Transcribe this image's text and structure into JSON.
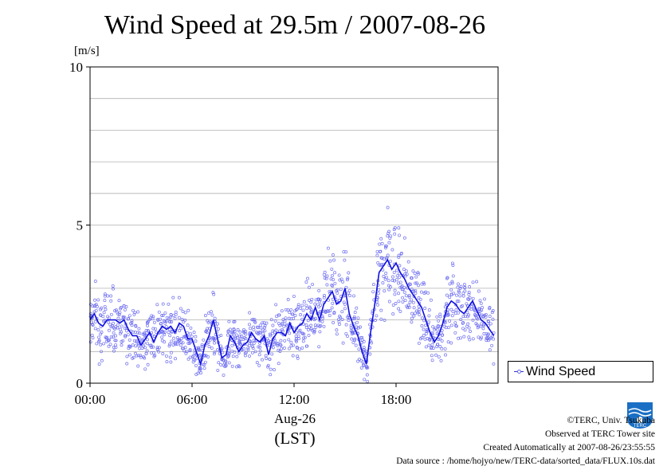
{
  "title": "Wind Speed at 29.5m / 2007-08-26",
  "unit": "[m/s]",
  "x_title_date": "Aug-26",
  "x_title_lst": "(LST)",
  "legend_label": "Wind Speed",
  "logo_text": "TERC",
  "credits": {
    "line1": "©TERC, Univ. Tsukuba",
    "line2": "Observed at TERC Tower site",
    "line3": "Created Automatically at 2007-08-26/23:55:55",
    "line4": "Data source : /home/hojyo/new/TERC-data/sorted_data/FLUX.10s.dat"
  },
  "colors": {
    "line": "#1010e0",
    "points": "#7070f0",
    "grid": "#b0b0b0"
  },
  "chart_data": {
    "type": "line",
    "title": "Wind Speed at 29.5m / 2007-08-26",
    "ylabel": "[m/s]",
    "xlabel": "Aug-26 (LST)",
    "xlim": [
      0,
      24
    ],
    "ylim": [
      0,
      10
    ],
    "x_ticks": [
      0,
      6,
      12,
      18
    ],
    "x_tick_labels": [
      "00:00",
      "06:00",
      "12:00",
      "18:00"
    ],
    "y_ticks": [
      0,
      5,
      10
    ],
    "y_tick_labels": [
      "0",
      "5",
      "10"
    ],
    "grid": "horizontal every 1 m/s",
    "legend": "right, beside plot bottom",
    "series": [
      {
        "name": "Wind Speed",
        "x": [
          0,
          0.25,
          0.5,
          0.75,
          1,
          1.25,
          1.5,
          1.75,
          2,
          2.25,
          2.5,
          2.75,
          3,
          3.25,
          3.5,
          3.75,
          4,
          4.25,
          4.5,
          4.75,
          5,
          5.25,
          5.5,
          5.75,
          6,
          6.25,
          6.5,
          6.75,
          7,
          7.25,
          7.5,
          7.75,
          8,
          8.25,
          8.5,
          8.75,
          9,
          9.25,
          9.5,
          9.75,
          10,
          10.25,
          10.5,
          10.75,
          11,
          11.25,
          11.5,
          11.75,
          12,
          12.25,
          12.5,
          12.75,
          13,
          13.25,
          13.5,
          13.75,
          14,
          14.25,
          14.5,
          14.75,
          15,
          15.25,
          15.5,
          15.75,
          16,
          16.25,
          16.5,
          16.75,
          17,
          17.25,
          17.5,
          17.75,
          18,
          18.25,
          18.5,
          18.75,
          19,
          19.25,
          19.5,
          19.75,
          20,
          20.25,
          20.5,
          20.75,
          21,
          21.25,
          21.5,
          21.75,
          22,
          22.25,
          22.5,
          22.75,
          23,
          23.25,
          23.5,
          23.75
        ],
        "y": [
          2.0,
          2.2,
          1.9,
          1.8,
          2.0,
          2.0,
          2.0,
          1.9,
          2.0,
          1.7,
          1.5,
          1.5,
          1.2,
          1.4,
          1.6,
          1.3,
          1.6,
          1.8,
          1.7,
          1.8,
          1.6,
          1.9,
          1.8,
          1.4,
          1.4,
          1.0,
          0.6,
          1.2,
          1.5,
          2.0,
          1.4,
          0.8,
          0.9,
          1.5,
          1.3,
          1.0,
          1.2,
          1.3,
          1.6,
          1.4,
          1.3,
          1.5,
          0.9,
          1.4,
          1.6,
          1.6,
          1.5,
          1.9,
          1.6,
          1.8,
          1.9,
          2.2,
          2.0,
          2.4,
          2.0,
          2.5,
          2.7,
          2.9,
          2.5,
          2.6,
          3.0,
          2.2,
          1.8,
          1.5,
          1.0,
          0.6,
          1.6,
          2.5,
          3.5,
          3.7,
          3.9,
          3.6,
          3.8,
          3.5,
          3.3,
          3.0,
          2.8,
          2.6,
          2.4,
          2.0,
          1.6,
          1.3,
          1.5,
          1.9,
          2.4,
          2.6,
          2.5,
          2.3,
          2.2,
          2.4,
          2.6,
          2.3,
          2.0,
          1.9,
          1.7,
          1.5
        ]
      }
    ]
  }
}
